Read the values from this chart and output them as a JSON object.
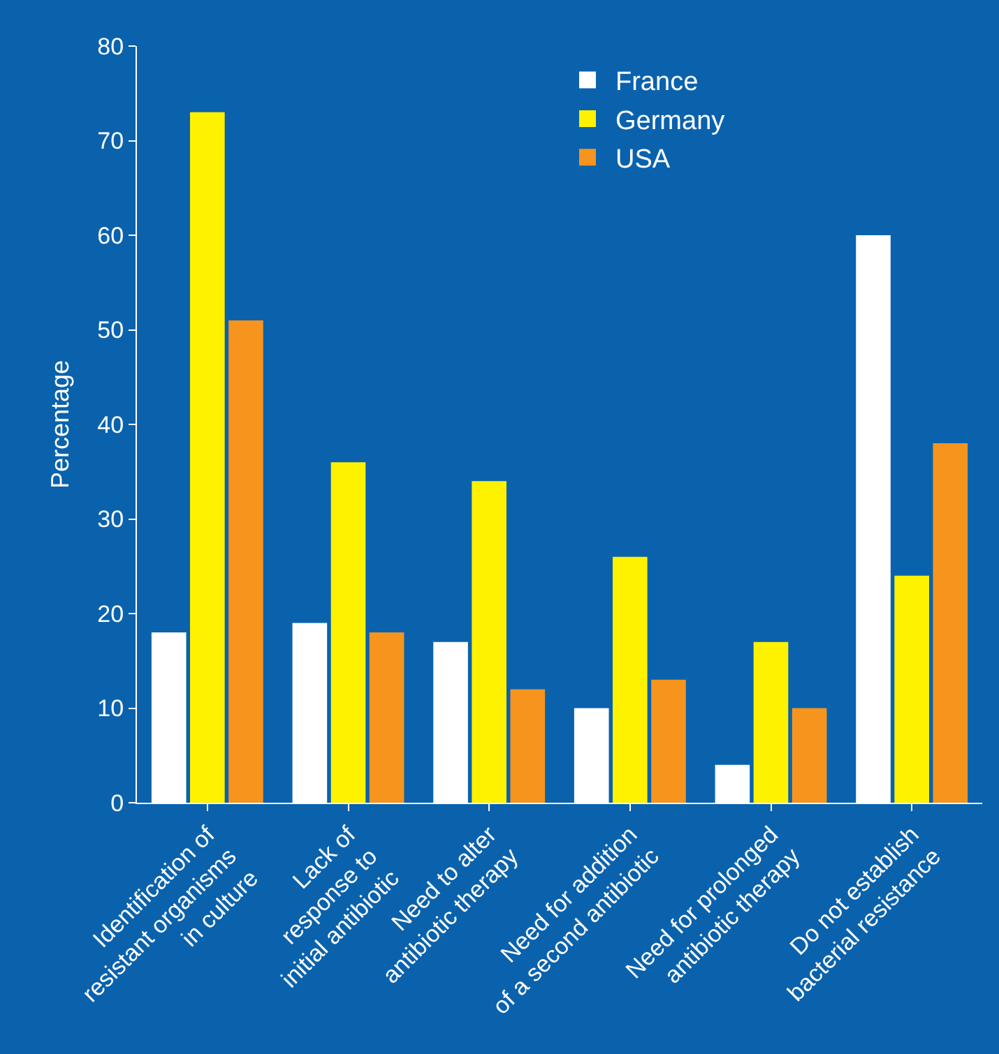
{
  "chart_data": {
    "type": "bar",
    "ylabel": "Percentage",
    "categories": [
      "Identification of\nresistant organisms\nin culture",
      "Lack of\nresponse to\ninitial antibiotic",
      "Need to alter\nantibiotic therapy",
      "Need for addition\nof a second antibiotic",
      "Need for prolonged\nantibiotic therapy",
      "Do not establish\nbacterial resistance"
    ],
    "series": [
      {
        "name": "France",
        "color": "#ffffff",
        "values": [
          18,
          19,
          17,
          10,
          4,
          60
        ]
      },
      {
        "name": "Germany",
        "color": "#fff200",
        "values": [
          73,
          36,
          34,
          26,
          17,
          24
        ]
      },
      {
        "name": "USA",
        "color": "#f7941d",
        "values": [
          51,
          18,
          12,
          13,
          10,
          38
        ]
      }
    ],
    "ylim": [
      0,
      80
    ],
    "yticks": [
      0,
      10,
      20,
      30,
      40,
      50,
      60,
      70,
      80
    ],
    "grid": false,
    "legend": "top right"
  }
}
